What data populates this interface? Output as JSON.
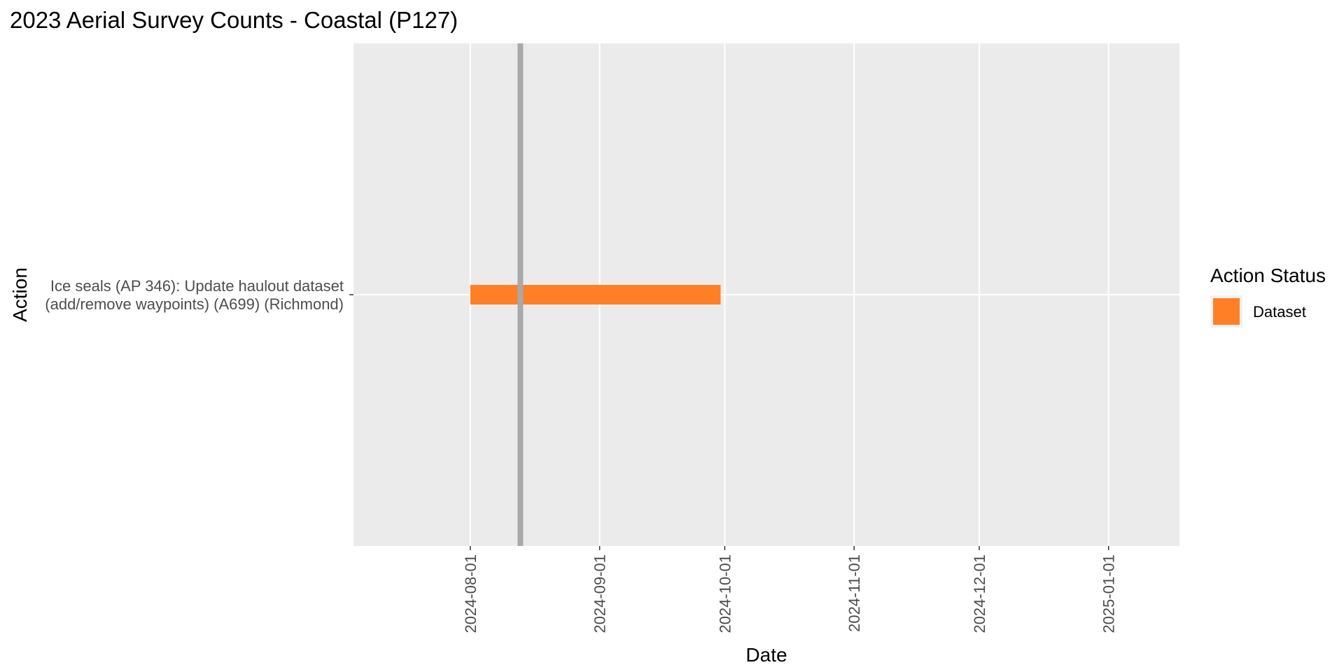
{
  "chart_data": {
    "type": "gantt",
    "title": "2023 Aerial Survey Counts - Coastal (P127)",
    "xlabel": "Date",
    "ylabel": "Action",
    "x_type": "date",
    "xlim": [
      "2024-07-04",
      "2025-01-18"
    ],
    "x_ticks": [
      "2024-08-01",
      "2024-09-01",
      "2024-10-01",
      "2024-11-01",
      "2024-12-01",
      "2025-01-01"
    ],
    "categories": [
      "Ice seals (AP 346): Update haulout dataset\n(add/remove waypoints) (A699) (Richmond)"
    ],
    "tasks": [
      {
        "category_index": 0,
        "start": "2024-08-01",
        "end": "2024-09-30",
        "status": "Dataset"
      }
    ],
    "reference_line": {
      "date": "2024-08-13",
      "color": "#a9a9a9"
    },
    "legend": {
      "title": "Action Status",
      "position": "right",
      "entries": [
        {
          "label": "Dataset",
          "color": "#ff7f27"
        }
      ]
    },
    "colors": {
      "panel_background": "#ebebeb",
      "grid": "#ffffff",
      "tick_label": "#4d4d4d"
    },
    "grid": true
  }
}
